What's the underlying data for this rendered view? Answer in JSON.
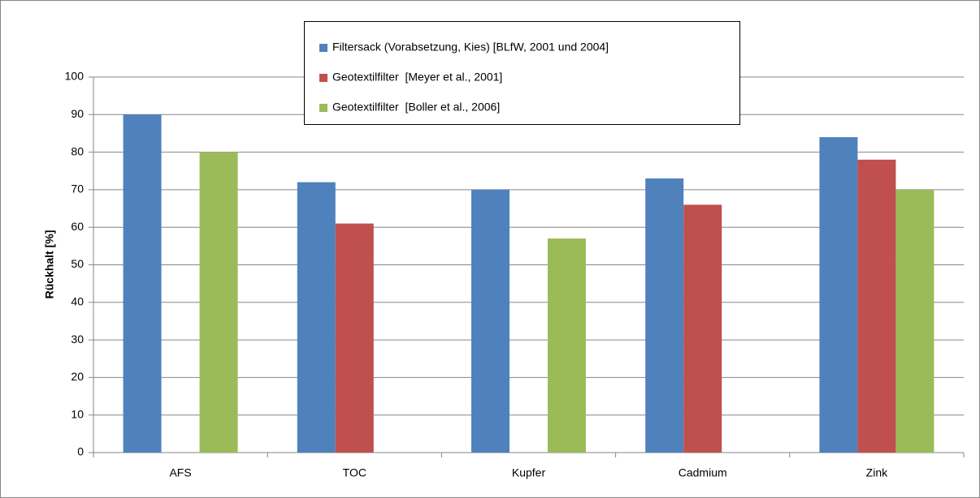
{
  "chart_data": {
    "type": "bar",
    "y_label": "Rückhalt [%]",
    "categories": [
      "AFS",
      "TOC",
      "Kupfer",
      "Cadmium",
      "Zink"
    ],
    "series": [
      {
        "name": "Filtersack (Vorabsetzung, Kies) [BLfW, 2001 und 2004]",
        "color": "#4f81bd",
        "values": [
          90,
          72,
          70,
          73,
          84
        ]
      },
      {
        "name": "Geotextilfilter  [Meyer et al., 2001]",
        "color": "#c0504d",
        "values": [
          null,
          61,
          null,
          66,
          78
        ]
      },
      {
        "name": "Geotextilfilter  [Boller et al., 2006]",
        "color": "#9bbb59",
        "values": [
          80,
          null,
          57,
          null,
          70
        ]
      }
    ],
    "ylim": [
      0,
      100
    ],
    "yticks": [
      0,
      10,
      20,
      30,
      40,
      50,
      60,
      70,
      80,
      90,
      100
    ],
    "grid": true,
    "legend": "top"
  }
}
